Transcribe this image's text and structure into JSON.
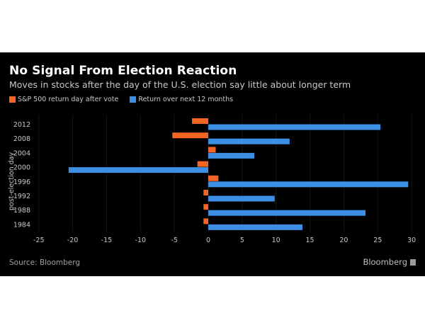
{
  "chart_data": {
    "type": "bar",
    "orientation": "horizontal",
    "title": "No Signal From Election Reaction",
    "subtitle": "Moves in stocks after the day of the U.S. election say little about longer term",
    "xlabel": "",
    "ylabel": "post-election day",
    "categories": [
      "2012",
      "2008",
      "2004",
      "2000",
      "1996",
      "1992",
      "1988",
      "1984"
    ],
    "series": [
      {
        "name": "S&P 500 return day after vote",
        "color": "#f26522",
        "values": [
          -2.4,
          -5.3,
          1.1,
          -1.6,
          1.5,
          -0.7,
          -0.7,
          -0.7
        ]
      },
      {
        "name": "Return over next 12 months",
        "color": "#3d8fe6",
        "values": [
          25.4,
          12.0,
          6.8,
          -20.6,
          29.5,
          9.8,
          23.2,
          13.9
        ]
      }
    ],
    "xlim": [
      -25,
      30
    ],
    "xticks": [
      "-25",
      "-20",
      "-15",
      "-10",
      "-5",
      "0",
      "5",
      "10",
      "15",
      "20",
      "25",
      "30"
    ],
    "grid": true,
    "legend": "top-left",
    "source": "Source: Bloomberg",
    "brand": "Bloomberg"
  }
}
